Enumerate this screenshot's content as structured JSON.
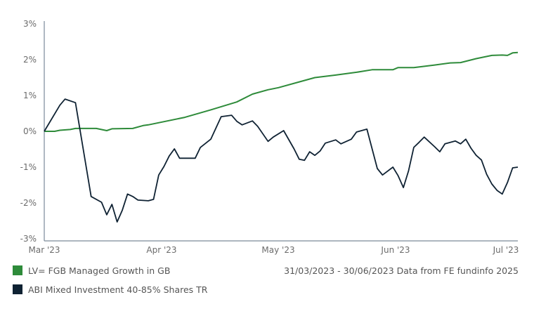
{
  "chart_data": {
    "type": "line",
    "title": "",
    "xlabel": "",
    "ylabel": "",
    "ylim": [
      -3,
      3
    ],
    "y_ticks": [
      "3%",
      "2%",
      "1%",
      "0%",
      "-1%",
      "-2%",
      "-3%"
    ],
    "x_ticks": [
      "Mar '23",
      "Apr '23",
      "May '23",
      "Jun '23",
      "Jul '23"
    ],
    "grid": false,
    "legend": "bottom-left",
    "footnote": "31/03/2023 - 30/06/2023 Data from FE fundinfo 2025",
    "series": [
      {
        "name": "LV= FGB Managed Growth in GB",
        "color": "#2e8b3a",
        "points": [
          [
            "2023-03-31",
            0
          ],
          [
            "2023-04-02",
            0.0
          ],
          [
            "2023-04-03",
            0.03
          ],
          [
            "2023-04-05",
            0.05
          ],
          [
            "2023-04-06",
            0.08
          ],
          [
            "2023-04-10",
            0.08
          ],
          [
            "2023-04-12",
            0.02
          ],
          [
            "2023-04-13",
            0.07
          ],
          [
            "2023-04-17",
            0.08
          ],
          [
            "2023-04-19",
            0.16
          ],
          [
            "2023-04-20",
            0.18
          ],
          [
            "2023-04-27",
            0.39
          ],
          [
            "2023-05-02",
            0.6
          ],
          [
            "2023-05-07",
            0.82
          ],
          [
            "2023-05-10",
            1.04
          ],
          [
            "2023-05-13",
            1.16
          ],
          [
            "2023-05-15",
            1.22
          ],
          [
            "2023-05-19",
            1.38
          ],
          [
            "2023-05-22",
            1.5
          ],
          [
            "2023-05-26",
            1.57
          ],
          [
            "2023-05-30",
            1.65
          ],
          [
            "2023-06-02",
            1.72
          ],
          [
            "2023-06-06",
            1.72
          ],
          [
            "2023-06-07",
            1.78
          ],
          [
            "2023-06-10",
            1.78
          ],
          [
            "2023-06-14",
            1.85
          ],
          [
            "2023-06-17",
            1.91
          ],
          [
            "2023-06-19",
            1.92
          ],
          [
            "2023-06-22",
            2.03
          ],
          [
            "2023-06-25",
            2.12
          ],
          [
            "2023-06-27",
            2.13
          ],
          [
            "2023-06-28",
            2.12
          ],
          [
            "2023-06-29",
            2.19
          ],
          [
            "2023-06-30",
            2.2
          ]
        ]
      },
      {
        "name": "ABI Mixed Investment 40-85% Shares TR",
        "color": "#0f2233",
        "points": [
          [
            "2023-03-31",
            0
          ],
          [
            "2023-04-03",
            0.73
          ],
          [
            "2023-04-04",
            0.9
          ],
          [
            "2023-04-06",
            0.8
          ],
          [
            "2023-04-09",
            -1.82
          ],
          [
            "2023-04-11",
            -1.98
          ],
          [
            "2023-04-12",
            -2.33
          ],
          [
            "2023-04-13",
            -2.04
          ],
          [
            "2023-04-14",
            -2.53
          ],
          [
            "2023-04-15",
            -2.2
          ],
          [
            "2023-04-16",
            -1.75
          ],
          [
            "2023-04-17",
            -1.82
          ],
          [
            "2023-04-18",
            -1.92
          ],
          [
            "2023-04-20",
            -1.94
          ],
          [
            "2023-04-21",
            -1.9
          ],
          [
            "2023-04-22",
            -1.22
          ],
          [
            "2023-04-23",
            -0.98
          ],
          [
            "2023-04-24",
            -0.69
          ],
          [
            "2023-04-25",
            -0.49
          ],
          [
            "2023-04-26",
            -0.75
          ],
          [
            "2023-04-27",
            -0.75
          ],
          [
            "2023-04-29",
            -0.75
          ],
          [
            "2023-04-30",
            -0.45
          ],
          [
            "2023-05-02",
            -0.22
          ],
          [
            "2023-05-04",
            0.41
          ],
          [
            "2023-05-06",
            0.45
          ],
          [
            "2023-05-07",
            0.28
          ],
          [
            "2023-05-08",
            0.18
          ],
          [
            "2023-05-10",
            0.29
          ],
          [
            "2023-05-11",
            0.14
          ],
          [
            "2023-05-13",
            -0.28
          ],
          [
            "2023-05-14",
            -0.16
          ],
          [
            "2023-05-16",
            0.02
          ],
          [
            "2023-05-18",
            -0.49
          ],
          [
            "2023-05-19",
            -0.78
          ],
          [
            "2023-05-20",
            -0.81
          ],
          [
            "2023-05-21",
            -0.57
          ],
          [
            "2023-05-22",
            -0.67
          ],
          [
            "2023-05-23",
            -0.55
          ],
          [
            "2023-05-24",
            -0.33
          ],
          [
            "2023-05-26",
            -0.24
          ],
          [
            "2023-05-27",
            -0.35
          ],
          [
            "2023-05-29",
            -0.22
          ],
          [
            "2023-05-30",
            -0.02
          ],
          [
            "2023-06-01",
            0.06
          ],
          [
            "2023-06-03",
            -1.04
          ],
          [
            "2023-06-04",
            -1.22
          ],
          [
            "2023-06-06",
            -1.0
          ],
          [
            "2023-06-07",
            -1.24
          ],
          [
            "2023-06-08",
            -1.57
          ],
          [
            "2023-06-09",
            -1.1
          ],
          [
            "2023-06-10",
            -0.45
          ],
          [
            "2023-06-11",
            -0.31
          ],
          [
            "2023-06-12",
            -0.16
          ],
          [
            "2023-06-14",
            -0.43
          ],
          [
            "2023-06-15",
            -0.57
          ],
          [
            "2023-06-16",
            -0.35
          ],
          [
            "2023-06-18",
            -0.27
          ],
          [
            "2023-06-19",
            -0.35
          ],
          [
            "2023-06-20",
            -0.22
          ],
          [
            "2023-06-21",
            -0.47
          ],
          [
            "2023-06-22",
            -0.67
          ],
          [
            "2023-06-23",
            -0.8
          ],
          [
            "2023-06-24",
            -1.2
          ],
          [
            "2023-06-25",
            -1.47
          ],
          [
            "2023-06-26",
            -1.65
          ],
          [
            "2023-06-27",
            -1.75
          ],
          [
            "2023-06-28",
            -1.43
          ],
          [
            "2023-06-29",
            -1.02
          ],
          [
            "2023-06-30",
            -1.0
          ]
        ]
      }
    ]
  }
}
